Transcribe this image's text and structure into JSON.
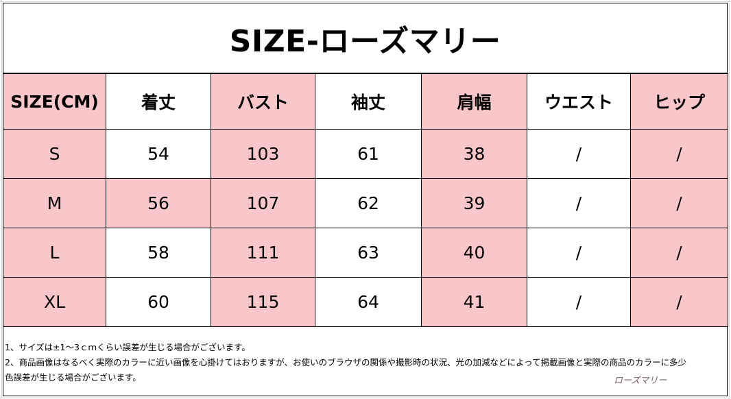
{
  "title": "SIZE-ローズマリー",
  "table": {
    "headers": [
      "SIZE(CM)",
      "着丈",
      "バスト",
      "袖丈",
      "肩幅",
      "ウエスト",
      "ヒップ"
    ],
    "rows": [
      [
        "S",
        "54",
        "103",
        "61",
        "38",
        "/",
        "/"
      ],
      [
        "M",
        "56",
        "107",
        "62",
        "39",
        "/",
        "/"
      ],
      [
        "L",
        "58",
        "111",
        "63",
        "40",
        "/",
        "/"
      ],
      [
        "XL",
        "60",
        "115",
        "64",
        "41",
        "/",
        "/"
      ]
    ]
  },
  "notes": [
    "1、サイズは±1～3ｃｍくらい誤差が生じる場合がございます。",
    "2、商品画像はなるべく実際のカラーに近い画像を心掛けてはおりますが、お使いのブラウザの関係や撮影時の状況、光の加減などによって掲載画像と実際の商品のカラーに多少",
    "色誤差が生じる場合がございます。"
  ],
  "signature": "ローズマリー",
  "colors": {
    "pink": "#f9c7ca",
    "white": "#ffffff",
    "border": "#000000"
  }
}
